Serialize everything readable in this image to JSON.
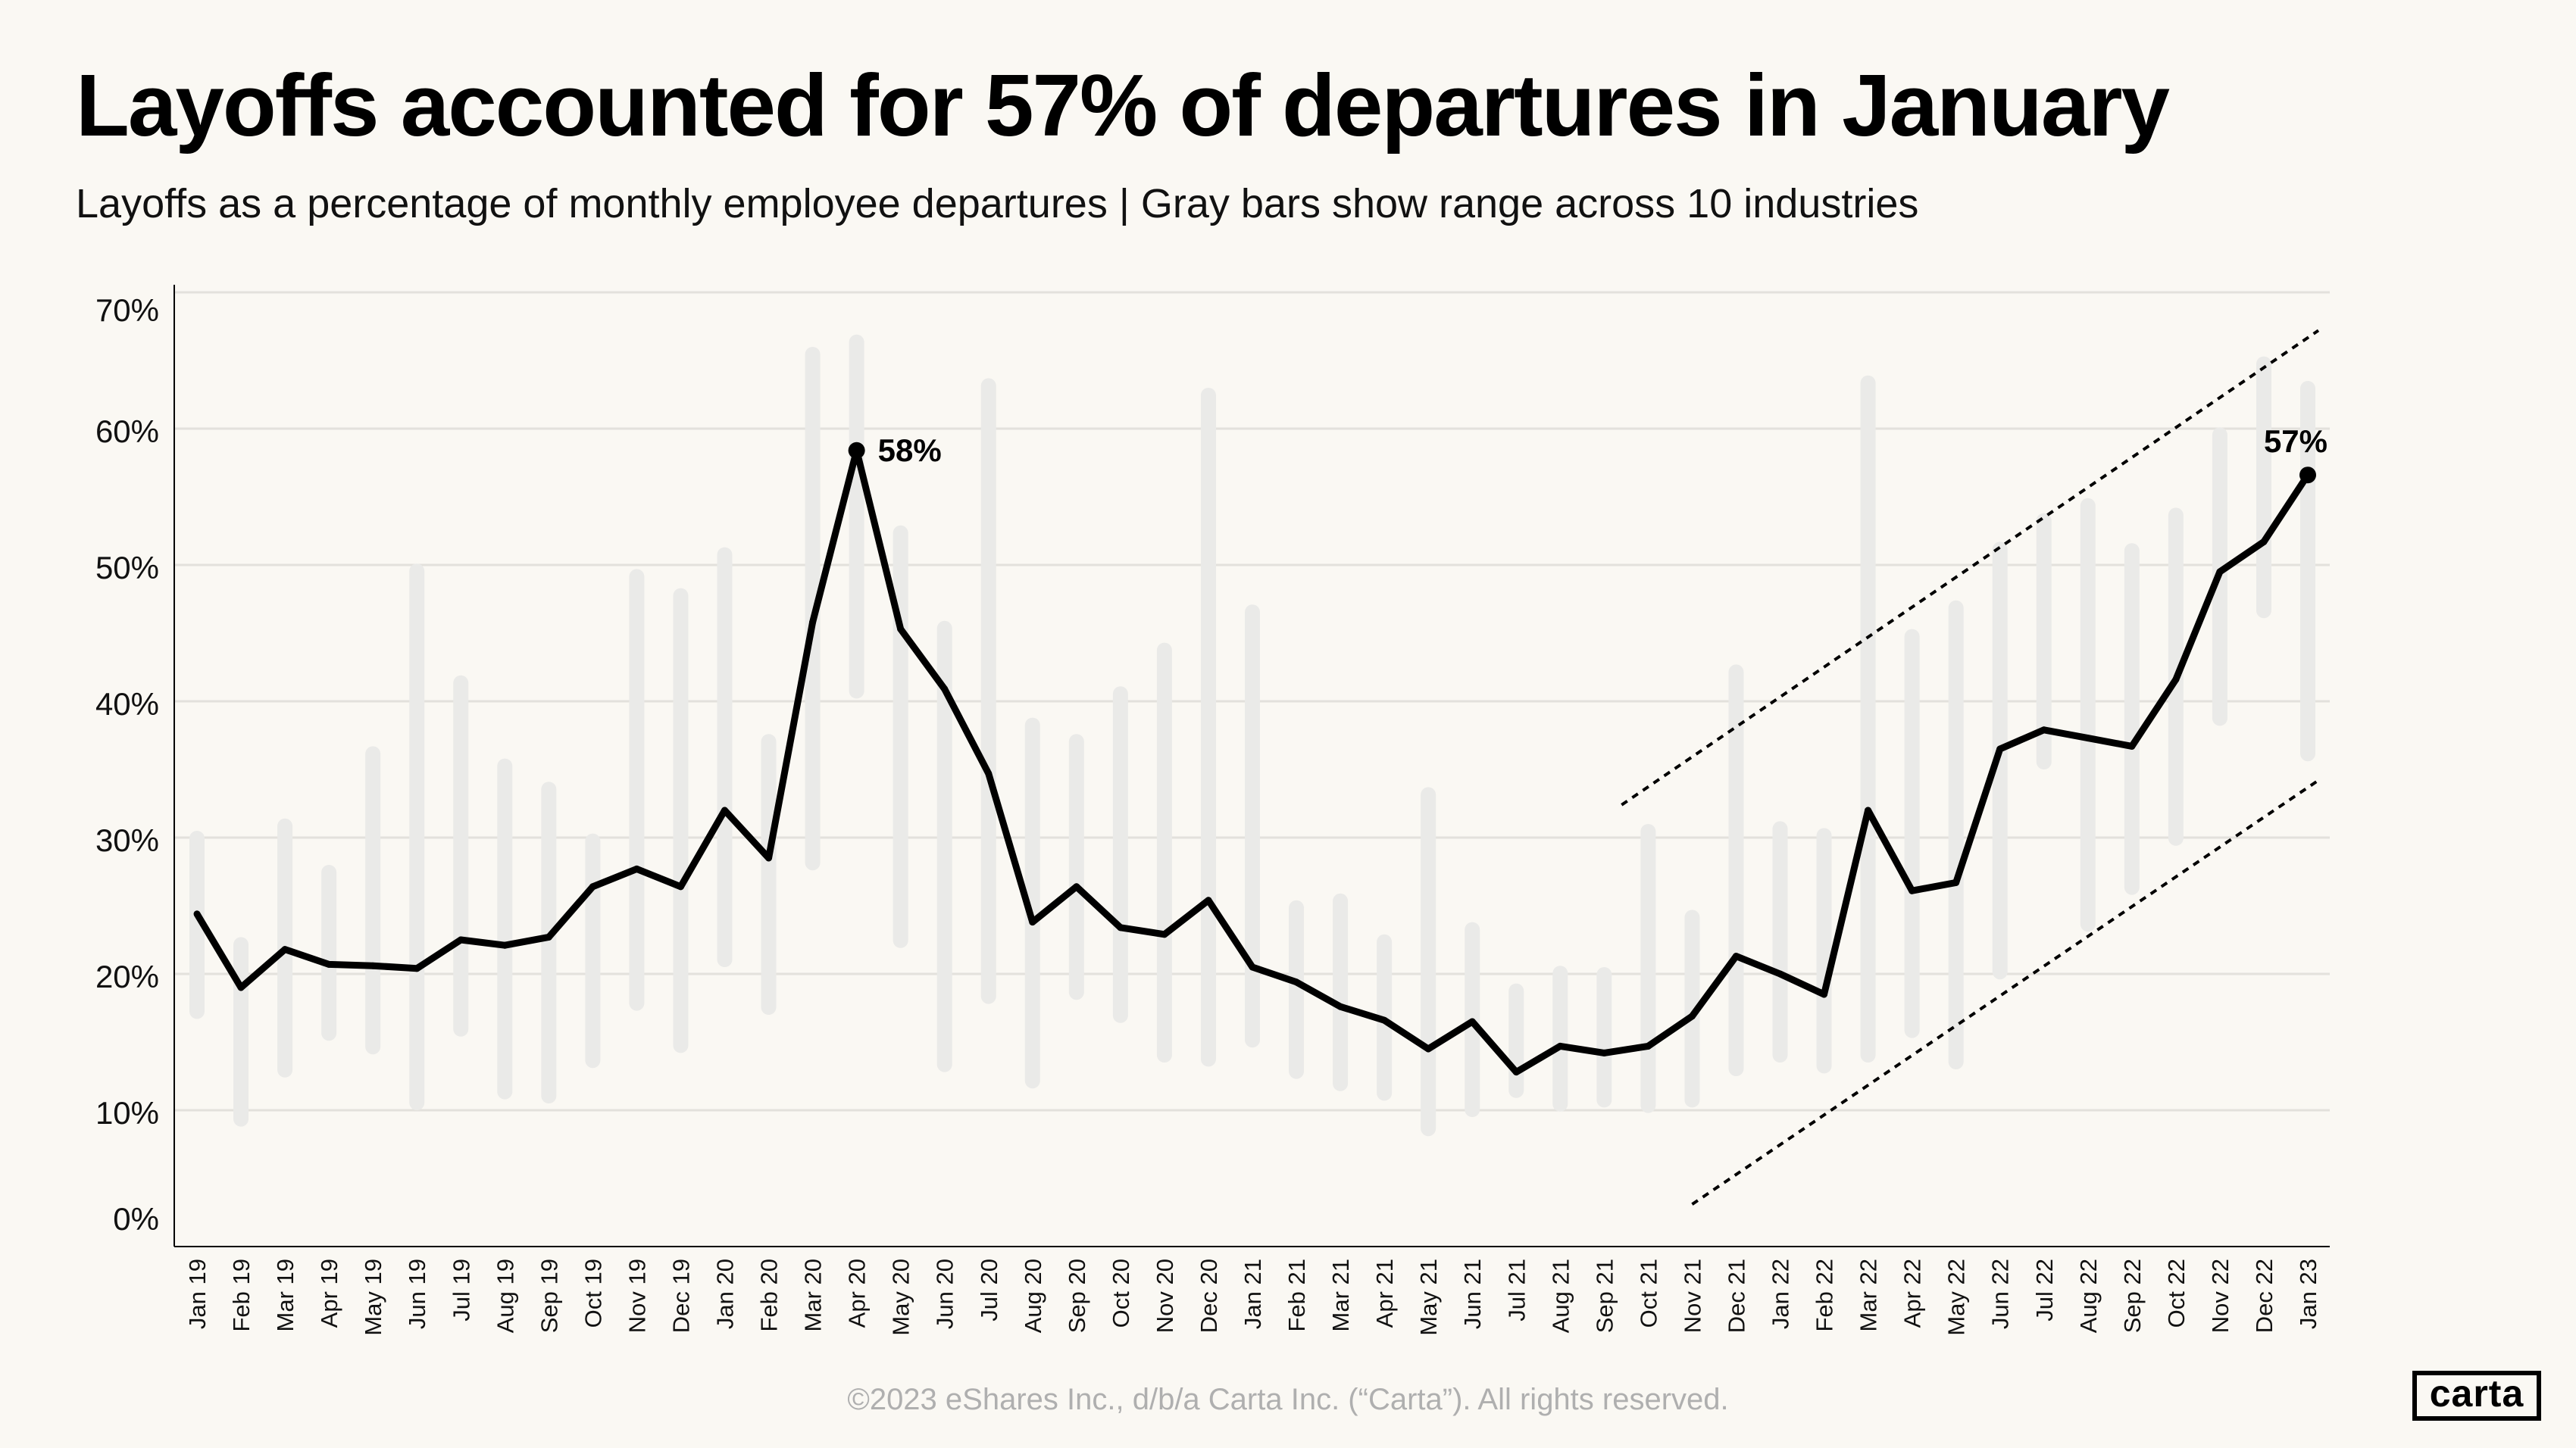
{
  "header": {
    "title": "Layoffs accounted for 57% of departures in January",
    "subtitle": "Layoffs as a percentage of monthly employee departures  | Gray bars show range across 10  industries"
  },
  "footer": {
    "copyright": "©2023 eShares Inc., d/b/a Carta Inc. (“Carta”). All rights reserved.",
    "logo_text": "carta"
  },
  "colors": {
    "background": "#FAF8F3",
    "line": "#000000",
    "range_bar": "#EAEAE8",
    "grid": "#E3E1DC"
  },
  "chart_data": {
    "type": "line",
    "title": "Layoffs accounted for 57% of departures in January",
    "xlabel": "",
    "ylabel": "",
    "ylim": [
      0,
      70
    ],
    "yticks": [
      "0%",
      "10%",
      "20%",
      "30%",
      "40%",
      "50%",
      "60%",
      "70%"
    ],
    "grid": "horizontal",
    "categories": [
      "Jan 19",
      "Feb 19",
      "Mar 19",
      "Apr 19",
      "May 19",
      "Jun 19",
      "Jul 19",
      "Aug 19",
      "Sep 19",
      "Oct 19",
      "Nov 19",
      "Dec 19",
      "Jan 20",
      "Feb 20",
      "Mar 20",
      "Apr 20",
      "May 20",
      "Jun 20",
      "Jul 20",
      "Aug 20",
      "Sep 20",
      "Oct 20",
      "Nov 20",
      "Dec 20",
      "Jan 21",
      "Feb 21",
      "Mar 21",
      "Apr 21",
      "May 21",
      "Jun 21",
      "Jul 21",
      "Aug 21",
      "Sep 21",
      "Oct 21",
      "Nov 21",
      "Dec 21",
      "Jan 22",
      "Feb 22",
      "Mar 22",
      "Apr 22",
      "May 22",
      "Jun 22",
      "Jul 22",
      "Aug 22",
      "Sep 22",
      "Oct 22",
      "Nov 22",
      "Dec 22",
      "Jan 23"
    ],
    "series": [
      {
        "values": [
          24.4,
          19.0,
          21.8,
          20.7,
          20.6,
          20.4,
          22.5,
          22.1,
          22.7,
          26.4,
          27.7,
          26.4,
          32.0,
          28.5,
          45.8,
          58.4,
          45.3,
          40.9,
          34.7,
          23.8,
          26.4,
          23.4,
          22.9,
          25.4,
          20.5,
          19.4,
          17.6,
          16.6,
          14.5,
          16.5,
          12.8,
          14.7,
          14.2,
          14.7,
          16.9,
          21.3,
          20.0,
          18.5,
          32.0,
          26.1,
          26.7,
          36.5,
          37.9,
          37.3,
          36.7,
          41.6,
          49.5,
          51.7,
          56.6
        ]
      }
    ],
    "ranges": {
      "min": [
        16.7,
        8.8,
        12.4,
        15.1,
        14.1,
        10.0,
        15.4,
        10.8,
        10.5,
        13.1,
        17.3,
        14.2,
        20.5,
        17.0,
        27.6,
        40.2,
        21.9,
        12.8,
        17.8,
        11.6,
        18.1,
        16.4,
        13.5,
        13.2,
        14.6,
        12.3,
        11.4,
        10.7,
        8.1,
        9.5,
        10.9,
        9.9,
        10.2,
        9.8,
        10.2,
        12.5,
        13.5,
        12.7,
        13.5,
        15.3,
        13.0,
        19.6,
        35.0,
        23.1,
        25.8,
        29.4,
        38.2,
        46.1,
        35.6
      ],
      "max": [
        30.5,
        22.7,
        31.4,
        28.0,
        36.7,
        50.1,
        41.9,
        35.8,
        34.1,
        30.3,
        49.7,
        48.3,
        51.3,
        37.6,
        66.0,
        66.9,
        52.9,
        45.9,
        63.7,
        38.8,
        37.6,
        41.1,
        44.3,
        63.0,
        47.1,
        25.4,
        25.9,
        22.9,
        33.7,
        23.8,
        19.3,
        20.6,
        20.5,
        31.0,
        24.7,
        42.7,
        31.2,
        30.7,
        63.9,
        45.3,
        47.4,
        51.7,
        53.8,
        54.9,
        51.6,
        54.2,
        60.1,
        65.3,
        63.5
      ]
    },
    "annotations": [
      {
        "category": "Apr 20",
        "label": "58%"
      },
      {
        "category": "Jan 23",
        "label": "57%"
      }
    ],
    "trend_channel": [
      {
        "x_start": "Sep 21",
        "y_start": 32.4,
        "x_end": "Jan 23",
        "y_end": 67.2
      },
      {
        "x_start": "Nov 21",
        "y_start": 3.1,
        "x_end": "Jan 23",
        "y_end": 34.2
      }
    ]
  }
}
